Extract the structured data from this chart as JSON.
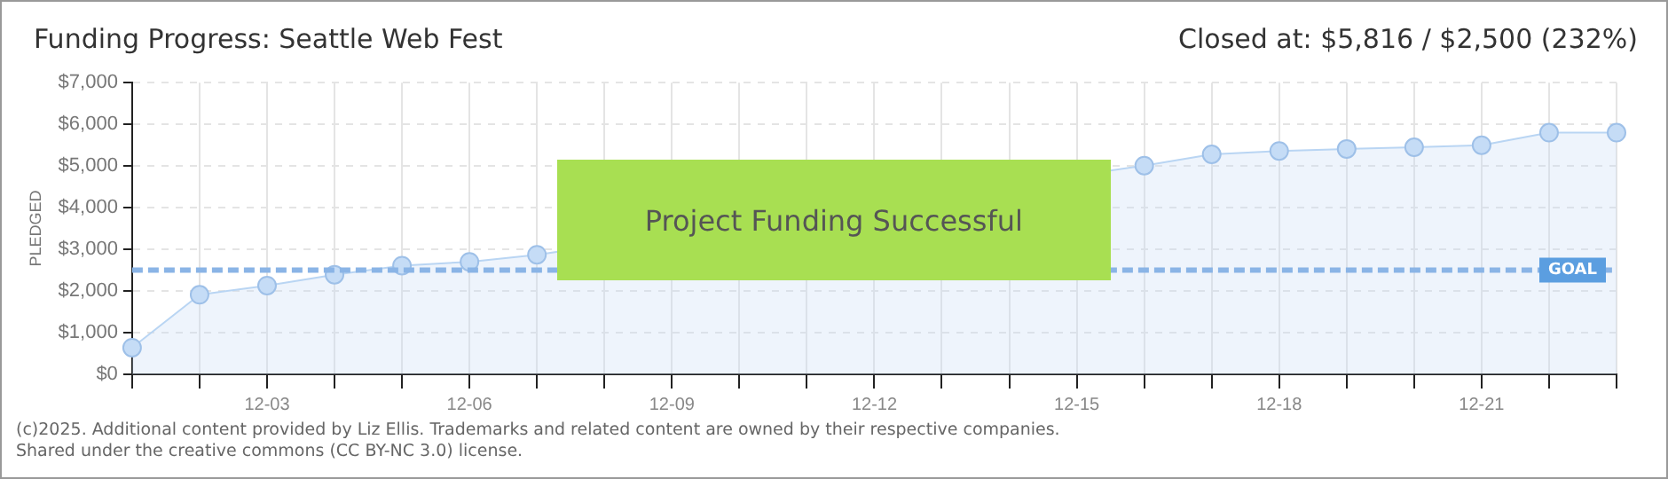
{
  "chart_data": {
    "type": "area",
    "title": "Funding Progress: Seattle Web Fest",
    "subtitle": "Closed at: $5,816 / $2,500 (232%)",
    "ylabel": "PLEDGED",
    "categories": [
      null,
      null,
      "12-03",
      null,
      null,
      "12-06",
      null,
      null,
      "12-09",
      null,
      null,
      "12-12",
      null,
      null,
      "12-15",
      null,
      null,
      "12-18",
      null,
      null,
      "12-21",
      null,
      null
    ],
    "series": [
      {
        "color": "#b9d5f3",
        "values": [
          640,
          1910,
          2130,
          2390,
          2610,
          2700,
          2870,
          null,
          null,
          null,
          null,
          null,
          null,
          null,
          null,
          5010,
          5280,
          5360,
          5410,
          5450,
          5500,
          5800,
          5800
        ]
      }
    ],
    "ylim": [
      0,
      7000
    ],
    "yticks": [
      {
        "value": 0,
        "label": "$0"
      },
      {
        "value": 1000,
        "label": "$1,000"
      },
      {
        "value": 2000,
        "label": "$2,000"
      },
      {
        "value": 3000,
        "label": "$3,000"
      },
      {
        "value": 4000,
        "label": "$4,000"
      },
      {
        "value": 5000,
        "label": "$5,000"
      },
      {
        "value": 6000,
        "label": "$6,000"
      },
      {
        "value": 7000,
        "label": "$7,000"
      }
    ],
    "grid": true,
    "marker": "circle",
    "legend": false,
    "ref_lines": [
      {
        "axis": "y",
        "value": 2500,
        "label": "GOAL",
        "color": "#8ab4e6",
        "line_style": "dashed"
      }
    ],
    "annotations": [
      "Project Funding Successful",
      "(c)2025. Additional content provided by Liz Ellis. Trademarks and related content are owned by their respective companies.",
      "Shared under the creative commons (CC BY-NC 3.0) license."
    ]
  }
}
